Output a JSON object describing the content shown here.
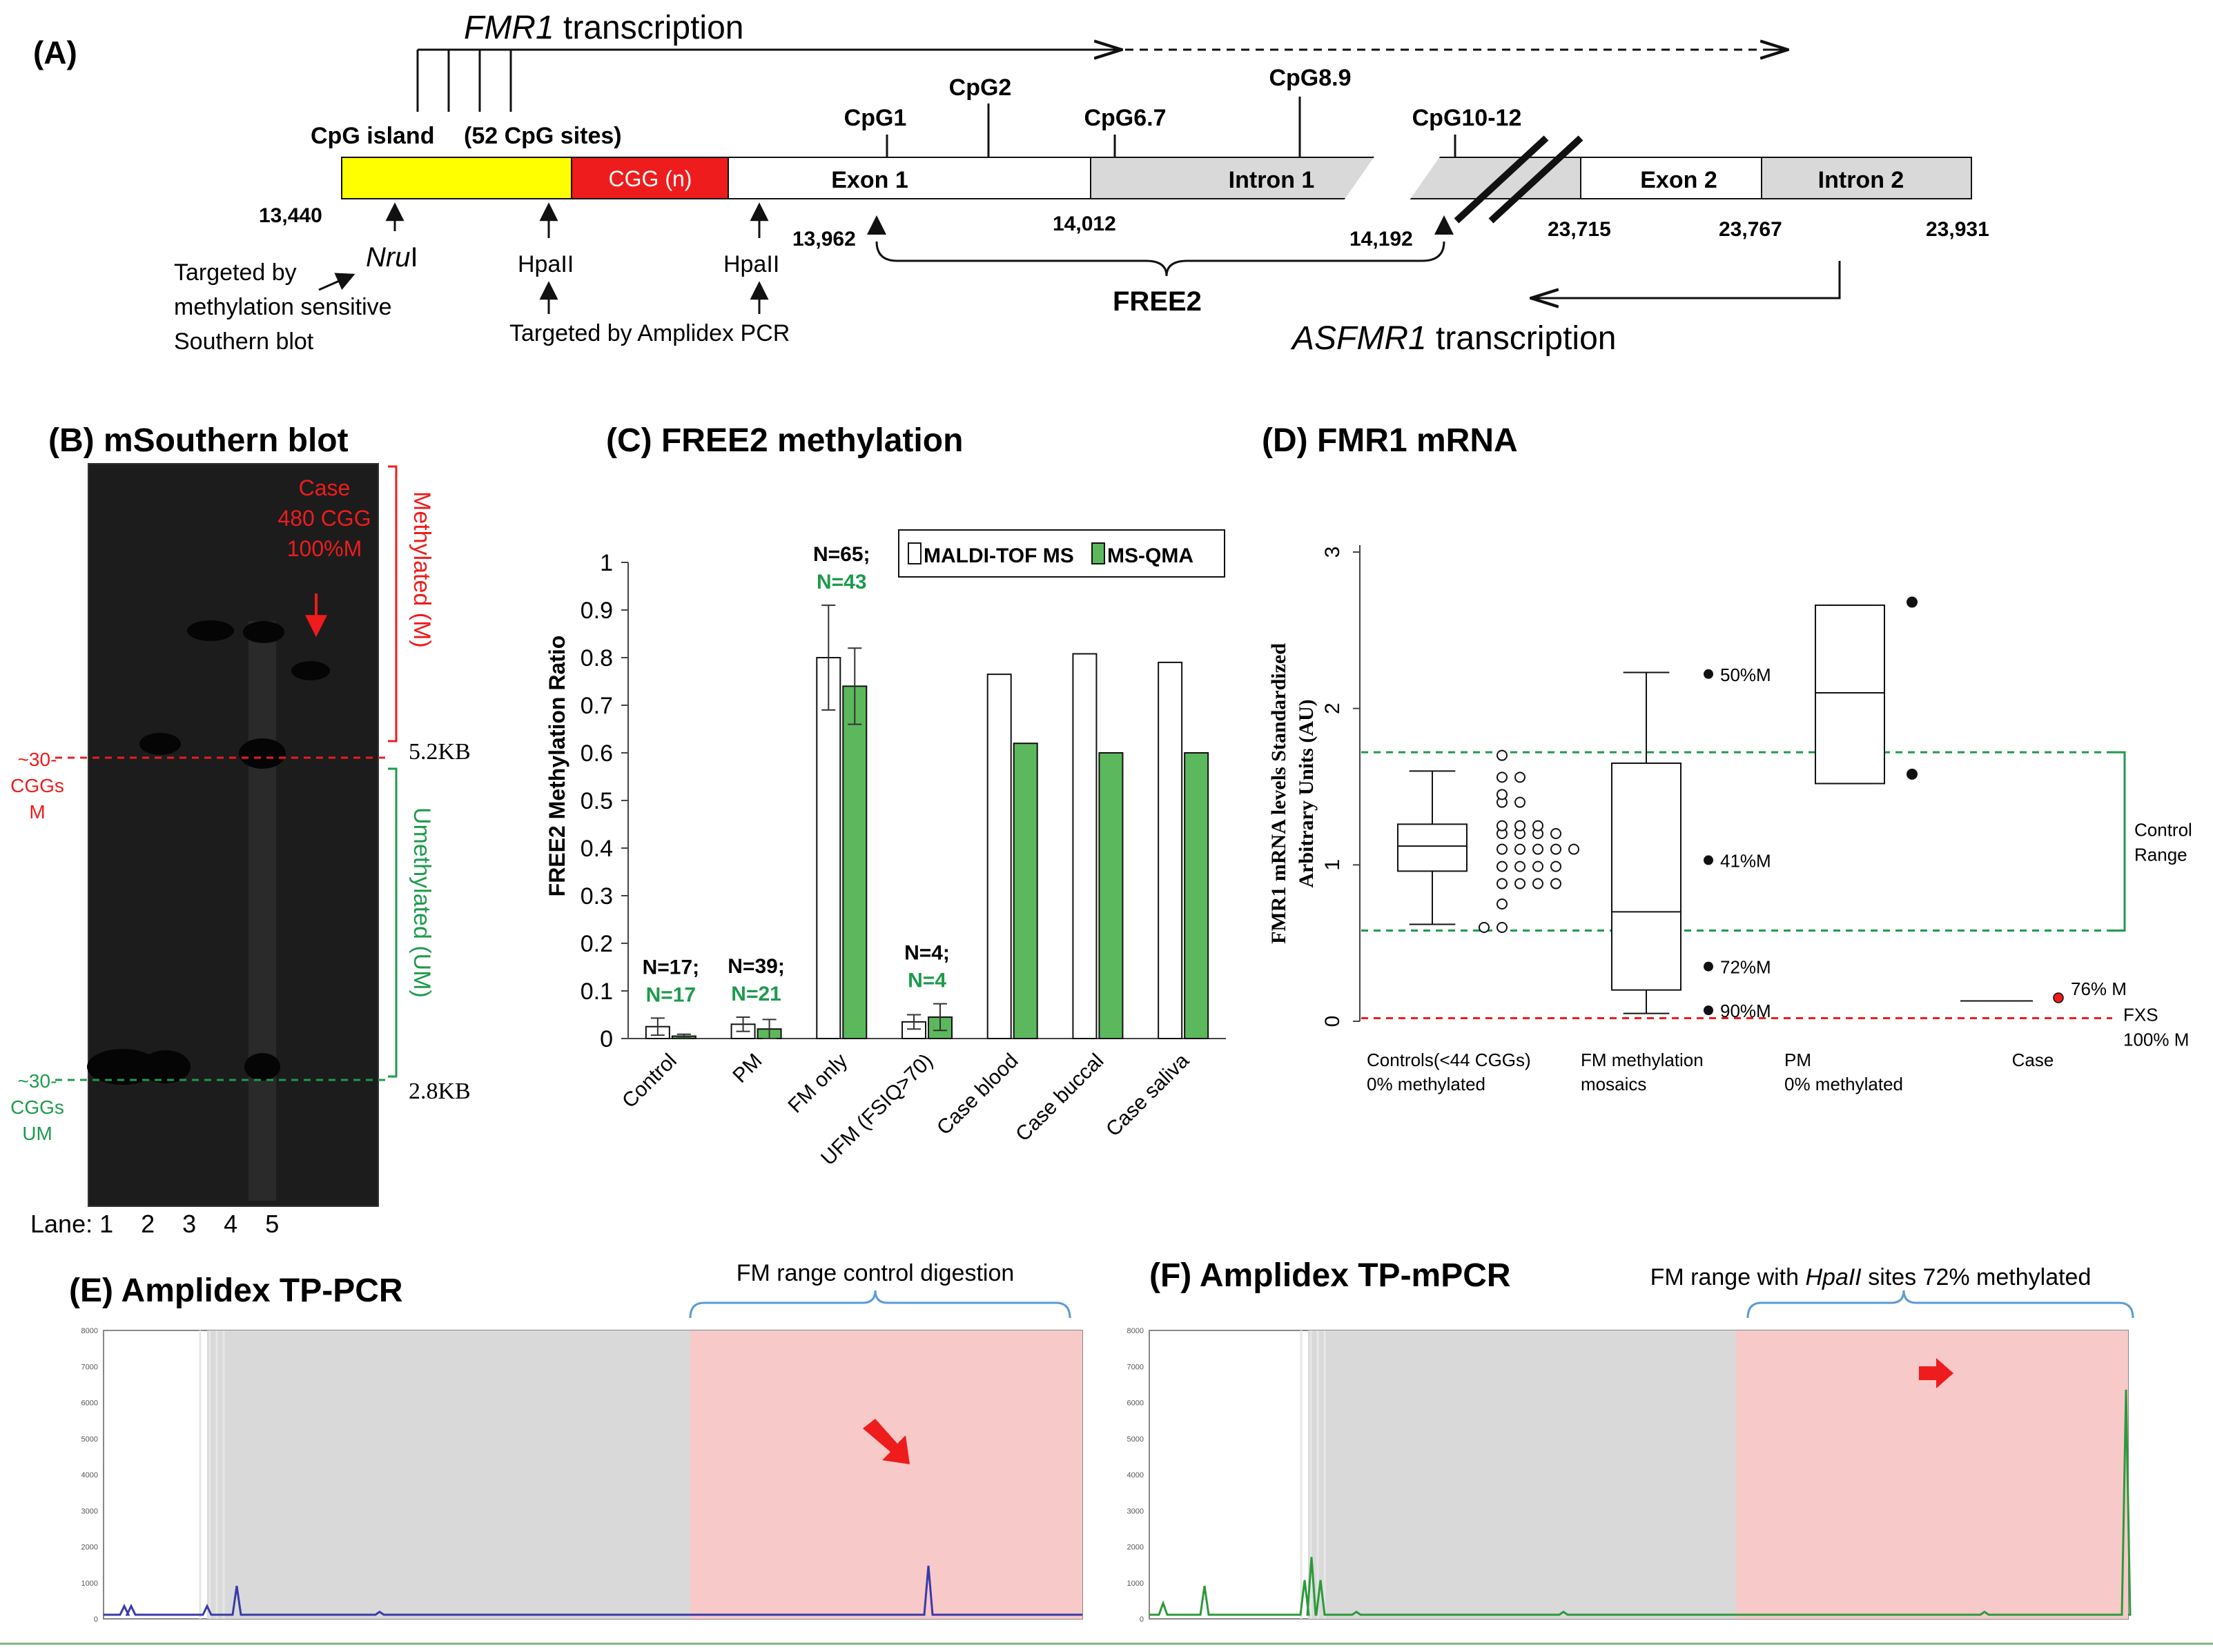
{
  "colors": {
    "red": "#ee1c1c",
    "green": "#1e9a4d",
    "yellow": "#ffff00",
    "bar_green": "#5cb85c",
    "grey_region": "#d9d9d9",
    "pink_region": "#f7c9c9",
    "blue_trace": "#3a3aa8",
    "green_trace": "#2a9a3a"
  },
  "panel_a": {
    "label": "(A)",
    "fmr1_transcription": {
      "gene": "FMR1",
      "text": " transcription"
    },
    "cpg_island": "CpG island",
    "cpg_sites": "(52 CpG sites)",
    "cgg": "CGG (n)",
    "segments": [
      {
        "name": "Exon 1"
      },
      {
        "name": "Intron 1"
      },
      {
        "name": "Exon 2"
      },
      {
        "name": "Intron 2"
      }
    ],
    "cpg_markers": [
      "CpG1",
      "CpG2",
      "CpG6.7",
      "CpG8.9",
      "CpG10-12"
    ],
    "coords": [
      "13,440",
      "13,962",
      "14,012",
      "14,192",
      "23,715",
      "23,767",
      "23,931"
    ],
    "nrui_italic": "Nru",
    "nrui_roman": "I",
    "hpaII_1": "HpaII",
    "hpaII_2": "HpaII",
    "southern_target": [
      "Targeted by",
      "methylation sensitive",
      "Southern blot"
    ],
    "amplidex_target": "Targeted by Amplidex PCR",
    "free2": "FREE2",
    "asfmr1_transcription": {
      "gene": "ASFMR1",
      "text": " transcription"
    }
  },
  "panel_b": {
    "title": "(B) mSouthern blot",
    "case_label": [
      "Case",
      "480 CGG",
      "100%M"
    ],
    "methylated_label": "Methylated  (M)",
    "unmethylated_label": "Umethylated  (UM)",
    "size_5_2": "5.2KB",
    "size_2_8": "2.8KB",
    "cggs_m": [
      "~30-",
      "CGGs",
      "M"
    ],
    "cggs_um": [
      "~30-",
      "CGGs",
      "UM"
    ],
    "lane_label": "Lane: 1    2    3    4    5"
  },
  "panel_c": {
    "title": "(C) FREE2 methylation",
    "chart_data": {
      "type": "bar",
      "title": "FREE2 methylation",
      "ylabel": "FREE2 Methylation Ratio",
      "ylim": [
        0,
        1
      ],
      "yticks": [
        "0",
        "0.1",
        "0.2",
        "0.3",
        "0.4",
        "0.5",
        "0.6",
        "0.7",
        "0.8",
        "0.9",
        "1"
      ],
      "categories": [
        "Control",
        "PM",
        "FM only",
        "UFM (FSIQ>70)",
        "Case blood",
        "Case buccal",
        "Case saliva"
      ],
      "series": [
        {
          "name": "MALDI-TOF MS",
          "values": [
            0.025,
            0.03,
            0.8,
            0.035,
            0.765,
            0.808,
            0.79
          ],
          "errors": [
            0.018,
            0.015,
            0.11,
            0.015,
            null,
            null,
            null
          ]
        },
        {
          "name": "MS-QMA",
          "values": [
            0.005,
            0.02,
            0.74,
            0.045,
            0.62,
            0.6,
            0.6
          ],
          "errors": [
            0.004,
            0.02,
            0.08,
            0.028,
            null,
            null,
            null
          ]
        }
      ],
      "annotations": [
        {
          "black": "N=17;",
          "green": "N=17"
        },
        {
          "black": "N=39;",
          "green": "N=21"
        },
        {
          "black": "N=65;",
          "green": "N=43"
        },
        {
          "black": "N=4;",
          "green": "N=4"
        }
      ]
    }
  },
  "panel_d": {
    "title": "(D) FMR1 mRNA",
    "chart_data": {
      "type": "box",
      "ylabel_line1": "FMR1 mRNA levels  Standardized",
      "ylabel_line2": "Arbitrary Units (AU)",
      "ylim": [
        0,
        3
      ],
      "yticks": [
        "0",
        "1",
        "2",
        "3"
      ],
      "groups": [
        {
          "label1": "Controls(<44 CGGs)",
          "label2": "0% methylated",
          "min": 0.62,
          "q1": 0.96,
          "median": 1.12,
          "q3": 1.26,
          "max": 1.6
        },
        {
          "label1": "FM methylation",
          "label2": "mosaics",
          "min": 0.05,
          "q1": 0.2,
          "median": 0.7,
          "q3": 1.65,
          "max": 2.23
        },
        {
          "label1": "PM",
          "label2": "0% methylated",
          "min": 1.52,
          "q1": 1.52,
          "median": 2.1,
          "q3": 2.66,
          "max": 2.66
        },
        {
          "label1": "Case",
          "label2": "",
          "value": 0.13
        }
      ],
      "control_outliers": [
        [
          0.6
        ],
        [
          0.6,
          0.75,
          0.88,
          0.99,
          1.1,
          1.2,
          1.25,
          1.4,
          1.45,
          1.56,
          1.7
        ],
        [
          0.88,
          0.99,
          1.1,
          1.2,
          1.25,
          1.4,
          1.56
        ],
        [
          0.88,
          0.99,
          1.1,
          1.2,
          1.25
        ],
        [
          0.88,
          0.99,
          1.1,
          1.2
        ],
        [
          1.1
        ]
      ],
      "mosaic_points": [
        {
          "y": 2.22,
          "text": "50%M"
        },
        {
          "y": 1.03,
          "text": "41%M"
        },
        {
          "y": 0.35,
          "text": "72%M"
        },
        {
          "y": 0.07,
          "text": "90%M"
        }
      ],
      "pm_points": [
        2.68,
        1.58
      ],
      "case_point": {
        "y": 0.15,
        "text": "76% M"
      },
      "control_range_lines": [
        0.58,
        1.72
      ],
      "control_range_label": [
        "Control",
        "Range"
      ],
      "fxs_line": 0.02,
      "fxs_label": [
        "FXS",
        "100% M"
      ]
    }
  },
  "panel_e": {
    "title": "(E) Amplidex TP-PCR",
    "range_label": "FM range control digestion",
    "yticks": [
      "8000",
      "7000",
      "6000",
      "5000",
      "4000",
      "3000",
      "2000",
      "1000",
      "0"
    ]
  },
  "panel_f": {
    "title": "(F) Amplidex TP-mPCR",
    "range_label_pre": "FM range with ",
    "range_label_italic": "HpaII",
    "range_label_post": " sites 72% methylated",
    "yticks": [
      "8000",
      "7000",
      "6000",
      "5000",
      "4000",
      "3000",
      "2000",
      "1000",
      "0"
    ]
  }
}
